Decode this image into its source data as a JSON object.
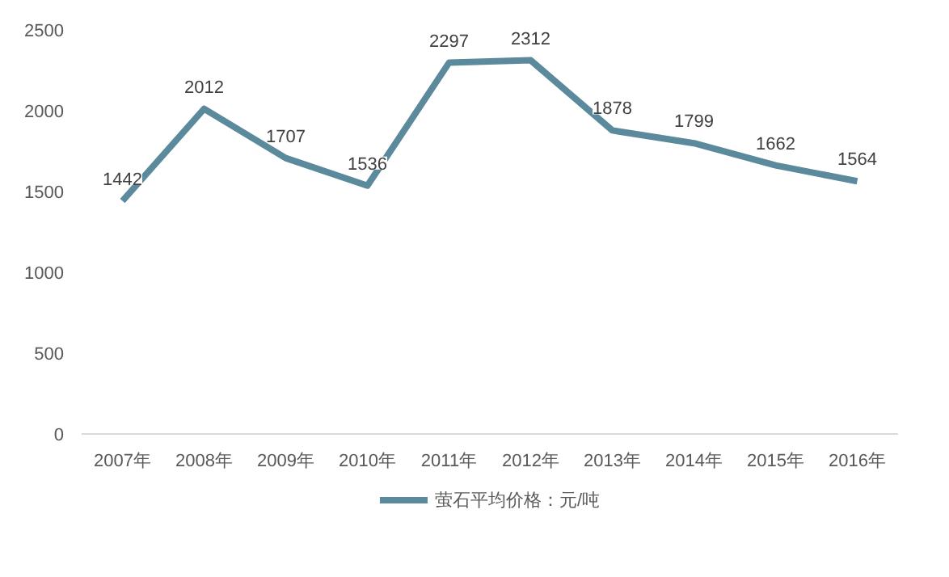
{
  "chart_data": {
    "type": "line",
    "categories": [
      "2007年",
      "2008年",
      "2009年",
      "2010年",
      "2011年",
      "2012年",
      "2013年",
      "2014年",
      "2015年",
      "2016年"
    ],
    "series": [
      {
        "name": "萤石平均价格：元/吨",
        "color": "#5b8a9c",
        "values": [
          1442,
          2012,
          1707,
          1536,
          2297,
          2312,
          1878,
          1799,
          1662,
          1564
        ]
      }
    ],
    "ylim": [
      0,
      2500
    ],
    "yticks": [
      0,
      500,
      1000,
      1500,
      2000,
      2500
    ],
    "grid": false,
    "legend": "bottom",
    "data_labels": true,
    "marker": "none",
    "line_style": "solid"
  }
}
